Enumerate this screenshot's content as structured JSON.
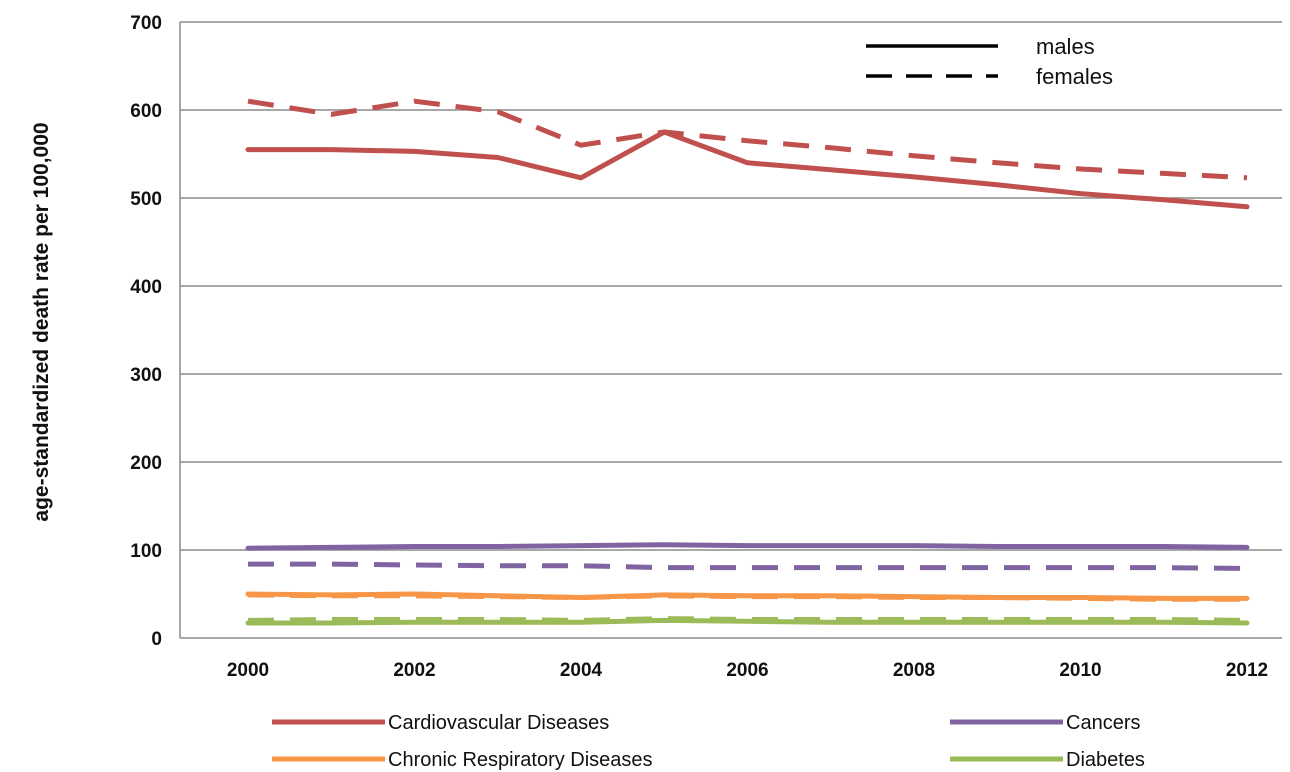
{
  "chart_data": {
    "type": "line",
    "title": "",
    "xlabel": "",
    "ylabel": "age-standardized death rate per 100,000",
    "xlim": [
      2000,
      2012
    ],
    "ylim": [
      0,
      700
    ],
    "yticks": [
      0,
      100,
      200,
      300,
      400,
      500,
      600,
      700
    ],
    "xticks": [
      2000,
      2002,
      2004,
      2006,
      2008,
      2010,
      2012
    ],
    "grid": "horizontal",
    "x": [
      2000,
      2001,
      2002,
      2003,
      2004,
      2005,
      2006,
      2007,
      2008,
      2009,
      2010,
      2011,
      2012
    ],
    "series": [
      {
        "name": "Cardiovascular Diseases",
        "sex": "males",
        "color": "#c0504d",
        "dash": false,
        "values": [
          555,
          555,
          553,
          546,
          523,
          575,
          540,
          532,
          524,
          515,
          505,
          498,
          490
        ]
      },
      {
        "name": "Cardiovascular Diseases",
        "sex": "females",
        "color": "#c0504d",
        "dash": true,
        "values": [
          610,
          595,
          610,
          598,
          560,
          575,
          565,
          557,
          548,
          540,
          533,
          528,
          523
        ]
      },
      {
        "name": "Cancers",
        "sex": "males",
        "color": "#8064a2",
        "dash": false,
        "values": [
          102,
          103,
          104,
          104,
          105,
          106,
          105,
          105,
          105,
          104,
          104,
          104,
          103
        ]
      },
      {
        "name": "Cancers",
        "sex": "females",
        "color": "#8064a2",
        "dash": true,
        "values": [
          84,
          84,
          83,
          82,
          82,
          80,
          80,
          80,
          80,
          80,
          80,
          80,
          79
        ]
      },
      {
        "name": "Chronic Respiratory Diseases",
        "sex": "males",
        "color": "#f79646",
        "dash": false,
        "values": [
          50,
          49,
          50,
          48,
          46,
          49,
          48,
          48,
          47,
          46,
          46,
          45,
          45
        ]
      },
      {
        "name": "Chronic Respiratory Diseases",
        "sex": "females",
        "color": "#f79646",
        "dash": true,
        "values": [
          49,
          48,
          48,
          47,
          46,
          48,
          47,
          47,
          46,
          46,
          45,
          44,
          44
        ]
      },
      {
        "name": "Diabetes",
        "sex": "males",
        "color": "#9bbb59",
        "dash": false,
        "values": [
          17,
          17,
          18,
          18,
          18,
          20,
          19,
          18,
          18,
          18,
          18,
          18,
          17
        ]
      },
      {
        "name": "Diabetes",
        "sex": "females",
        "color": "#9bbb59",
        "dash": true,
        "values": [
          20,
          21,
          21,
          21,
          20,
          22,
          21,
          21,
          21,
          21,
          21,
          21,
          20
        ]
      }
    ],
    "style_legend": {
      "placement": "top-right",
      "items": [
        {
          "label": "males",
          "dash": false
        },
        {
          "label": "females",
          "dash": true
        }
      ]
    },
    "legend": {
      "placement": "bottom",
      "items": [
        {
          "label": "Cardiovascular Diseases",
          "color": "#c0504d"
        },
        {
          "label": "Cancers",
          "color": "#8064a2"
        },
        {
          "label": "Chronic Respiratory Diseases",
          "color": "#f79646"
        },
        {
          "label": "Diabetes",
          "color": "#9bbb59"
        }
      ]
    }
  }
}
